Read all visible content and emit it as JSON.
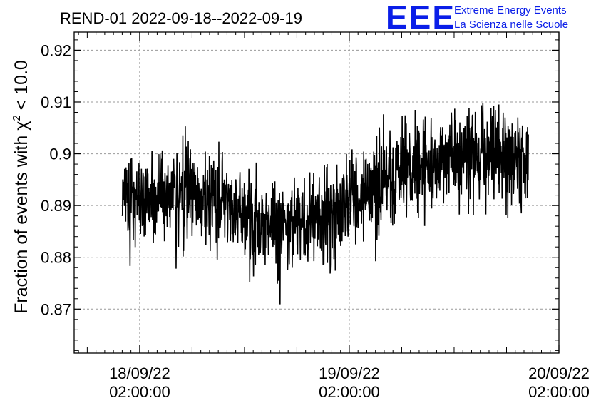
{
  "chart_data": {
    "type": "line",
    "title": "REND-01 2022-09-18--2022-09-19",
    "ylabel_prefix": "Fraction of events with ",
    "ylabel_symbol": "χ",
    "ylabel_sup": "2",
    "ylabel_suffix": " < 10.0",
    "xlabel": "",
    "ylim": [
      0.8615,
      0.9235
    ],
    "y_ticks": [
      0.87,
      0.88,
      0.89,
      0.9,
      0.91,
      0.92
    ],
    "y_tick_labels": [
      "0.87",
      "0.88",
      "0.89",
      "0.9",
      "0.91",
      "0.92"
    ],
    "xlim_hours": [
      -7.5,
      48
    ],
    "x_ticks": [
      {
        "hours": 0,
        "date": "18/09/22",
        "time": "02:00:00"
      },
      {
        "hours": 24,
        "date": "19/09/22",
        "time": "02:00:00"
      },
      {
        "hours": 48,
        "date": "20/09/22",
        "time": "02:00:00"
      }
    ],
    "grid": true,
    "series": [
      {
        "name": "fraction",
        "color": "#000000",
        "start_hours": -2.0,
        "end_hours": 44.5,
        "trend_knots": [
          [
            -2.0,
            0.8915
          ],
          [
            2.0,
            0.892
          ],
          [
            6.0,
            0.8925
          ],
          [
            10.0,
            0.8905
          ],
          [
            13.0,
            0.887
          ],
          [
            16.0,
            0.886
          ],
          [
            18.0,
            0.8865
          ],
          [
            21.0,
            0.888
          ],
          [
            24.0,
            0.891
          ],
          [
            28.0,
            0.8945
          ],
          [
            32.0,
            0.8975
          ],
          [
            35.0,
            0.899
          ],
          [
            38.0,
            0.9005
          ],
          [
            41.0,
            0.8995
          ],
          [
            44.5,
            0.898
          ]
        ],
        "noise_sigma": 0.0045
      }
    ]
  },
  "logo": {
    "letters": "EEE",
    "line1": "Extreme Energy Events",
    "line2": "La Scienza nelle Scuole",
    "color": "#0a1ee8"
  }
}
